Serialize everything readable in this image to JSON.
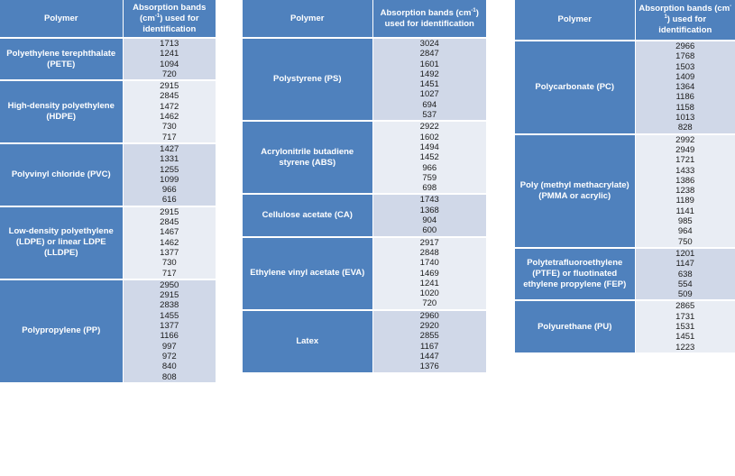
{
  "header": {
    "polymer": "Polymer",
    "absorption_pre": "Absorption bands (cm",
    "absorption_sup": "-1",
    "absorption_post": ") used for identification"
  },
  "tables": [
    {
      "rows": [
        {
          "name": "Polyethylene terephthalate (PETE)",
          "bands": [
            "1713",
            "1241",
            "1094",
            "720"
          ]
        },
        {
          "name": "High-density polyethylene (HDPE)",
          "bands": [
            "2915",
            "2845",
            "1472",
            "1462",
            "730",
            "717"
          ]
        },
        {
          "name": "Polyvinyl chloride (PVC)",
          "bands": [
            "1427",
            "1331",
            "1255",
            "1099",
            "966",
            "616"
          ]
        },
        {
          "name": "Low-density polyethylene (LDPE) or linear LDPE (LLDPE)",
          "bands": [
            "2915",
            "2845",
            "1467",
            "1462",
            "1377",
            "730",
            "717"
          ]
        },
        {
          "name": "Polypropylene (PP)",
          "bands": [
            "2950",
            "2915",
            "2838",
            "1455",
            "1377",
            "1166",
            "997",
            "972",
            "840",
            "808"
          ]
        }
      ]
    },
    {
      "rows": [
        {
          "name": "Polystyrene (PS)",
          "bands": [
            "3024",
            "2847",
            "1601",
            "1492",
            "1451",
            "1027",
            "694",
            "537"
          ]
        },
        {
          "name": "Acrylonitrile butadiene styrene (ABS)",
          "bands": [
            "2922",
            "1602",
            "1494",
            "1452",
            "966",
            "759",
            "698"
          ]
        },
        {
          "name": "Cellulose acetate (CA)",
          "bands": [
            "1743",
            "1368",
            "904",
            "600"
          ]
        },
        {
          "name": "Ethylene vinyl acetate (EVA)",
          "bands": [
            "2917",
            "2848",
            "1740",
            "1469",
            "1241",
            "1020",
            "720"
          ]
        },
        {
          "name": "Latex",
          "bands": [
            "2960",
            "2920",
            "2855",
            "1167",
            "1447",
            "1376"
          ]
        }
      ]
    },
    {
      "rows": [
        {
          "name": "Polycarbonate (PC)",
          "bands": [
            "2966",
            "1768",
            "1503",
            "1409",
            "1364",
            "1186",
            "1158",
            "1013",
            "828"
          ]
        },
        {
          "name": "Poly (methyl methacrylate) (PMMA or acrylic)",
          "bands": [
            "2992",
            "2949",
            "1721",
            "1433",
            "1386",
            "1238",
            "1189",
            "1141",
            "985",
            "964",
            "750"
          ]
        },
        {
          "name": "Polytetrafluoroethylene (PTFE) or fluotinated ethylene propylene (FEP)",
          "bands": [
            "1201",
            "1147",
            "638",
            "554",
            "509"
          ]
        },
        {
          "name": "Polyurethane (PU)",
          "bands": [
            "2865",
            "1731",
            "1531",
            "1451",
            "1223"
          ]
        }
      ]
    }
  ]
}
